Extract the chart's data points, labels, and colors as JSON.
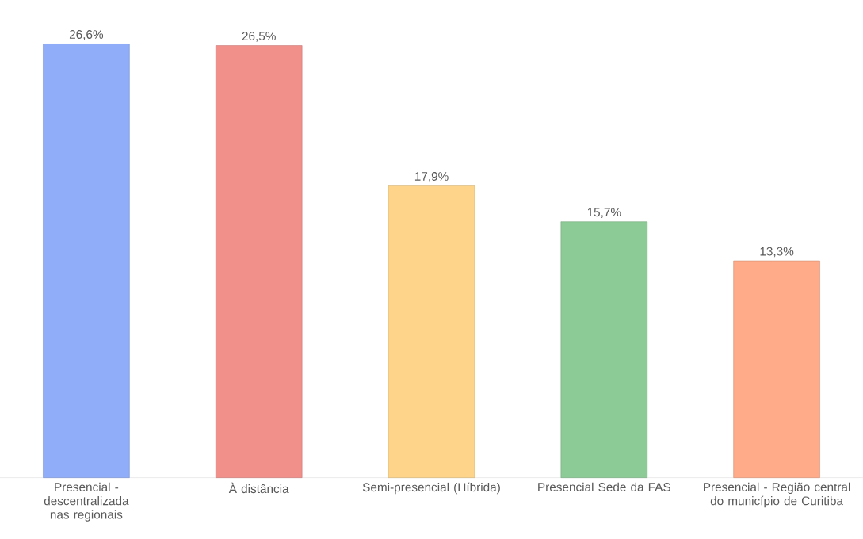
{
  "chart_data": {
    "type": "bar",
    "categories": [
      "Presencial - descentralizada nas regionais",
      "À distância",
      "Semi-presencial (Híbrida)",
      "Presencial Sede da FAS",
      "Presencial - Região central do município de Curitiba"
    ],
    "values": [
      26.6,
      26.5,
      17.9,
      15.7,
      13.3
    ],
    "value_labels": [
      "26,6%",
      "26,5%",
      "17,9%",
      "15,7%",
      "13,3%"
    ],
    "colors": [
      "#8fadf8",
      "#f18f8b",
      "#fdd48a",
      "#8ccb95",
      "#ffaa88"
    ]
  }
}
